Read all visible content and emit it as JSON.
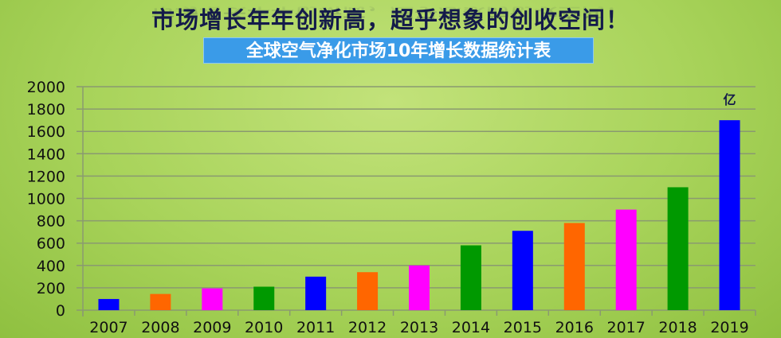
{
  "header": {
    "title": "市场增长年年创新高，超乎想象的创收空间！",
    "subtitle": "全球空气净化市场10年增长数据统计表"
  },
  "chart_data": {
    "type": "bar",
    "title": "全球空气净化市场10年增长数据统计表",
    "categories": [
      "2007",
      "2008",
      "2009",
      "2010",
      "2011",
      "2012",
      "2013",
      "2014",
      "2015",
      "2016",
      "2017",
      "2018",
      "2019"
    ],
    "values": [
      100,
      145,
      195,
      210,
      300,
      340,
      400,
      580,
      710,
      780,
      900,
      1100,
      1700
    ],
    "colors": [
      "#0000ff",
      "#ff6600",
      "#ff00ff",
      "#009900",
      "#0000ff",
      "#ff6600",
      "#ff00ff",
      "#009900",
      "#0000ff",
      "#ff6600",
      "#ff00ff",
      "#009900",
      "#0000ff"
    ],
    "unit_label": "亿",
    "ylim": [
      0,
      2000
    ],
    "yticks": [
      "0",
      "200",
      "400",
      "600",
      "800",
      "1000",
      "1200",
      "1400",
      "1600",
      "1800",
      "2000"
    ],
    "grid": true,
    "legend": "none"
  }
}
